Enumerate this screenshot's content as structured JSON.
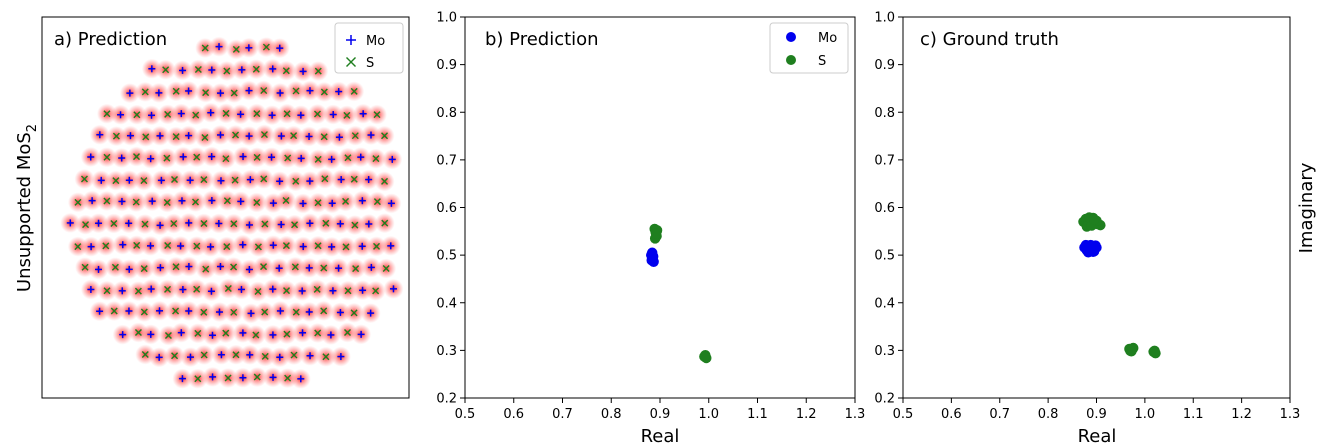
{
  "colors": {
    "mo": "#0000ee",
    "s": "#1f7f1f",
    "glow": "#ff0000"
  },
  "chart_data": [
    {
      "type": "scatter",
      "title": "a) Prediction",
      "ylabel": "Unsupported MoS",
      "ylabel_sub": "2",
      "xlabel": "",
      "grid": false,
      "axes_ticks": false,
      "legend": {
        "placement": "top-right",
        "entries": [
          "Mo",
          "S"
        ],
        "markers": [
          "plus",
          "cross"
        ]
      },
      "series": [
        {
          "name": "Mo",
          "marker": "plus",
          "x": [],
          "y": []
        },
        {
          "name": "S",
          "marker": "cross",
          "x": [],
          "y": []
        }
      ]
    },
    {
      "type": "scatter",
      "title": "b) Prediction",
      "xlabel": "Real",
      "ylabel": "",
      "xlim": [
        0.5,
        1.3
      ],
      "ylim": [
        0.2,
        1.0
      ],
      "xticks": [
        "0.5",
        "0.6",
        "0.7",
        "0.8",
        "0.9",
        "1.0",
        "1.1",
        "1.2",
        "1.3"
      ],
      "yticks": [
        "0.2",
        "0.3",
        "0.4",
        "0.5",
        "0.6",
        "0.7",
        "0.8",
        "0.9",
        "1.0"
      ],
      "grid": false,
      "legend": {
        "placement": "top-right",
        "entries": [
          "Mo",
          "S"
        ]
      },
      "series": [
        {
          "name": "Mo",
          "x": [
            0.882,
            0.885,
            0.887,
            0.884,
            0.886,
            0.883
          ],
          "y": [
            0.5,
            0.492,
            0.486,
            0.505,
            0.497,
            0.489
          ]
        },
        {
          "name": "S",
          "x": [
            0.889,
            0.891,
            0.893,
            0.89,
            0.894,
            0.892,
            0.993,
            0.995,
            0.991
          ],
          "y": [
            0.555,
            0.548,
            0.54,
            0.535,
            0.552,
            0.545,
            0.29,
            0.284,
            0.287
          ]
        }
      ]
    },
    {
      "type": "scatter",
      "title": "c) Ground truth",
      "xlabel": "Real",
      "ylabel": "Imaginary",
      "ylabel_position": "right",
      "xlim": [
        0.5,
        1.3
      ],
      "ylim": [
        0.2,
        1.0
      ],
      "xticks": [
        "0.5",
        "0.6",
        "0.7",
        "0.8",
        "0.9",
        "1.0",
        "1.1",
        "1.2",
        "1.3"
      ],
      "yticks": [
        "0.2",
        "0.3",
        "0.4",
        "0.5",
        "0.6",
        "0.7",
        "0.8",
        "0.9",
        "1.0"
      ],
      "grid": false,
      "series": [
        {
          "name": "Mo",
          "x": [
            0.875,
            0.88,
            0.885,
            0.89,
            0.895,
            0.9,
            0.878,
            0.888,
            0.898,
            0.883,
            0.893
          ],
          "y": [
            0.516,
            0.51,
            0.518,
            0.512,
            0.508,
            0.516,
            0.521,
            0.521,
            0.52,
            0.506,
            0.507
          ]
        },
        {
          "name": "S",
          "x": [
            0.873,
            0.878,
            0.883,
            0.888,
            0.893,
            0.898,
            0.903,
            0.908,
            0.88,
            0.89,
            0.9,
            0.885,
            0.895,
            0.968,
            0.972,
            0.976,
            0.97,
            0.974,
            1.018,
            1.022,
            1.02
          ],
          "y": [
            0.57,
            0.576,
            0.566,
            0.574,
            0.578,
            0.568,
            0.565,
            0.563,
            0.56,
            0.562,
            0.572,
            0.579,
            0.575,
            0.303,
            0.298,
            0.305,
            0.299,
            0.302,
            0.297,
            0.294,
            0.299
          ]
        }
      ]
    }
  ]
}
